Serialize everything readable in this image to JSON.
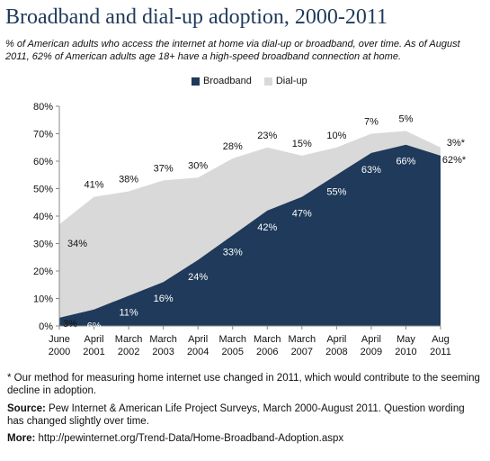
{
  "header": {
    "title": "Broadband and dial-up adoption, 2000-2011",
    "subtitle": "% of American adults who access the internet at home via dial-up or broadband, over time. As of August 2011, 62% of American adults age 18+ have a high-speed broadband connection at home."
  },
  "footer": {
    "footnote": "* Our method for measuring home internet use changed in 2011, which would contribute to the seeming decline in adoption.",
    "source_label": "Source:",
    "source_text": "Pew Internet & American Life Project Surveys, March 2000-August 2011. Question wording has changed slightly over time.",
    "more_label": "More:",
    "more_text": "http://pewinternet.org/Trend-Data/Home-Broadband-Adoption.aspx"
  },
  "colors": {
    "broadband": "#1f3a5a",
    "dialup": "#d9d9d9",
    "title": "#1f3a5a"
  },
  "chart_data": {
    "type": "area",
    "stacked": true,
    "categories": [
      [
        "June",
        "2000"
      ],
      [
        "April",
        "2001"
      ],
      [
        "March",
        "2002"
      ],
      [
        "March",
        "2003"
      ],
      [
        "April",
        "2004"
      ],
      [
        "March",
        "2005"
      ],
      [
        "March",
        "2006"
      ],
      [
        "March",
        "2007"
      ],
      [
        "April",
        "2008"
      ],
      [
        "April",
        "2009"
      ],
      [
        "May",
        "2010"
      ],
      [
        "Aug",
        "2011"
      ]
    ],
    "series": [
      {
        "name": "Broadband",
        "values": [
          3,
          6,
          11,
          16,
          24,
          33,
          42,
          47,
          55,
          63,
          66,
          62
        ],
        "labels": [
          "3%",
          "6%",
          "11%",
          "16%",
          "24%",
          "33%",
          "42%",
          "47%",
          "55%",
          "63%",
          "66%",
          "62%*"
        ]
      },
      {
        "name": "Dial-up",
        "values": [
          34,
          41,
          38,
          37,
          30,
          28,
          23,
          15,
          10,
          7,
          5,
          3
        ],
        "labels": [
          "34%",
          "41%",
          "38%",
          "37%",
          "30%",
          "28%",
          "23%",
          "15%",
          "10%",
          "7%",
          "5%",
          "3%*"
        ]
      }
    ],
    "y_ticks": [
      "0%",
      "10%",
      "20%",
      "30%",
      "40%",
      "50%",
      "60%",
      "70%",
      "80%"
    ],
    "ylim": [
      0,
      80
    ],
    "legend": "top-center",
    "grid": false
  }
}
